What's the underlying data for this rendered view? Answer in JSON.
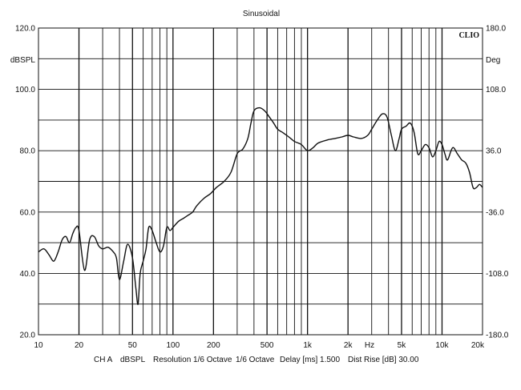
{
  "chart_data": {
    "type": "line",
    "title": "Sinusoidal",
    "logo_text": "CLIO",
    "x_scale": "log",
    "xlim": [
      10,
      20000
    ],
    "x_tick_labels": [
      "10",
      "20",
      "50",
      "100",
      "200",
      "500",
      "1k",
      "2k",
      "5k",
      "10k",
      "20k"
    ],
    "x_unit_label": "Hz",
    "ylabel": "dBSPL",
    "ylim": [
      20,
      120
    ],
    "y_tick_labels": [
      "120.0",
      "100.0",
      "80.0",
      "60.0",
      "40.0",
      "20.0"
    ],
    "y2label": "Deg",
    "y2lim": [
      -180,
      180
    ],
    "y2_tick_labels": [
      "180.0",
      "108.0",
      "36.0",
      "-36.0",
      "-108.0",
      "-180.0"
    ],
    "grid": true,
    "footer": {
      "channel": "CH A",
      "unit": "dBSPL",
      "resolution": "Resolution 1/6 Octave",
      "smoothing": "1/6 Octave",
      "delay": "Delay [ms] 1.500",
      "dist_rise": "Dist Rise [dB] 30.00"
    },
    "series": [
      {
        "line_color": "#111111",
        "x": [
          10,
          11,
          12,
          13,
          14,
          15,
          16,
          17,
          18,
          19,
          20,
          22,
          24,
          26,
          28,
          30,
          33,
          36,
          38,
          40,
          43,
          46,
          50,
          53,
          55,
          57,
          60,
          63,
          66,
          70,
          75,
          80,
          85,
          90,
          95,
          100,
          110,
          120,
          130,
          140,
          150,
          170,
          190,
          210,
          240,
          270,
          300,
          330,
          360,
          380,
          400,
          440,
          480,
          520,
          560,
          600,
          650,
          700,
          750,
          800,
          900,
          1000,
          1100,
          1200,
          1400,
          1600,
          1800,
          2000,
          2200,
          2500,
          2800,
          3000,
          3300,
          3600,
          3900,
          4200,
          4500,
          4800,
          5000,
          5400,
          5800,
          6200,
          6600,
          7000,
          7500,
          8000,
          8500,
          9000,
          9500,
          10000,
          10500,
          11000,
          12000,
          13000,
          14000,
          15000,
          16000,
          17000,
          18000,
          19000,
          20000
        ],
        "y": [
          47,
          48,
          46,
          44,
          47,
          51,
          52,
          50,
          53,
          55,
          54,
          41,
          51,
          52,
          49,
          48,
          48.5,
          47,
          45,
          38,
          44,
          49.5,
          45,
          35,
          30,
          40,
          44,
          48,
          55,
          54,
          50,
          47,
          49,
          55,
          54,
          55,
          57,
          58,
          59,
          60,
          62,
          64.5,
          66,
          68,
          70,
          73,
          79,
          80.5,
          84,
          89,
          93,
          94,
          93,
          91,
          89,
          87,
          86,
          85,
          84,
          83,
          82,
          80,
          81,
          82.5,
          83.5,
          84,
          84.5,
          85,
          84.5,
          84,
          85,
          87,
          90,
          92,
          91,
          85,
          80,
          84,
          87,
          88,
          89,
          86,
          79,
          80,
          82,
          81,
          78,
          80,
          83,
          82,
          79,
          77,
          81,
          79,
          77,
          76,
          73,
          68,
          68,
          69,
          68
        ]
      }
    ]
  }
}
